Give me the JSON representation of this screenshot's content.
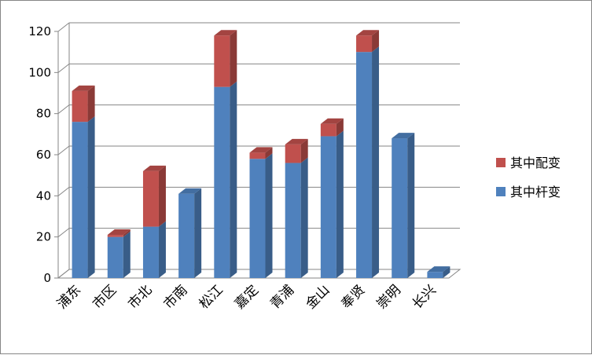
{
  "chart_data": {
    "type": "bar",
    "stacked": true,
    "three_d": true,
    "categories": [
      "浦东",
      "市区",
      "市北",
      "市南",
      "松江",
      "嘉定",
      "青浦",
      "金山",
      "奉贤",
      "崇明",
      "长兴"
    ],
    "series": [
      {
        "name": "其中杆变",
        "color": "#4F81BD",
        "values": [
          76,
          20,
          25,
          41,
          93,
          58,
          56,
          69,
          110,
          68,
          3
        ]
      },
      {
        "name": "其中配变",
        "color": "#C0504D",
        "values": [
          15,
          1,
          27,
          0,
          25,
          3,
          9,
          6,
          8,
          0,
          0
        ]
      }
    ],
    "ylim": [
      0,
      120
    ],
    "yticks": [
      "0",
      "20",
      "40",
      "60",
      "80",
      "100",
      "120"
    ],
    "grid": true,
    "legend_position": "right",
    "legend_order": [
      "其中配变",
      "其中杆变"
    ]
  }
}
